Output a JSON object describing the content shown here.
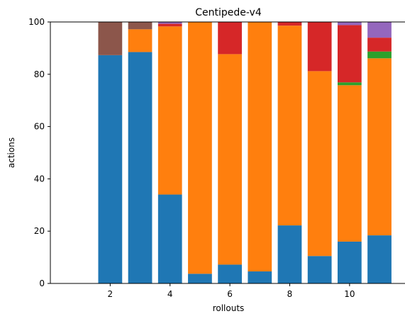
{
  "chart_data": {
    "type": "bar",
    "stacked": true,
    "title": "Centipede-v4",
    "xlabel": "rollouts",
    "ylabel": "actions",
    "xlim": [
      0,
      11.9
    ],
    "ylim": [
      0,
      100
    ],
    "xticks": [
      2,
      4,
      6,
      8,
      10
    ],
    "yticks": [
      0,
      20,
      40,
      60,
      80,
      100
    ],
    "grid": false,
    "x": [
      1,
      2,
      3,
      4,
      5,
      6,
      7,
      8,
      9,
      10,
      11
    ],
    "series": [
      {
        "color": "#1f77b4",
        "values": [
          0,
          87.3,
          88.5,
          34.0,
          3.7,
          7.2,
          4.6,
          22.2,
          10.5,
          16.0,
          18.4
        ]
      },
      {
        "color": "#ff7f0e",
        "values": [
          0,
          0,
          8.7,
          64.3,
          96.3,
          80.5,
          95.4,
          76.4,
          70.7,
          59.8,
          67.7
        ]
      },
      {
        "color": "#2ca02c",
        "values": [
          0,
          0,
          0,
          0,
          0,
          0,
          0,
          0,
          0,
          1.1,
          2.6
        ]
      },
      {
        "color": "#d62728",
        "values": [
          0,
          0,
          0,
          1.0,
          0,
          12.3,
          0,
          1.4,
          18.8,
          21.9,
          5.3
        ]
      },
      {
        "color": "#9467bd",
        "values": [
          0,
          0,
          0,
          0.7,
          0,
          0,
          0,
          0,
          0,
          1.2,
          6.0
        ]
      },
      {
        "color": "#8c564b",
        "values": [
          0,
          12.7,
          2.8,
          0,
          0,
          0,
          0,
          0,
          0,
          0,
          0
        ]
      }
    ]
  }
}
